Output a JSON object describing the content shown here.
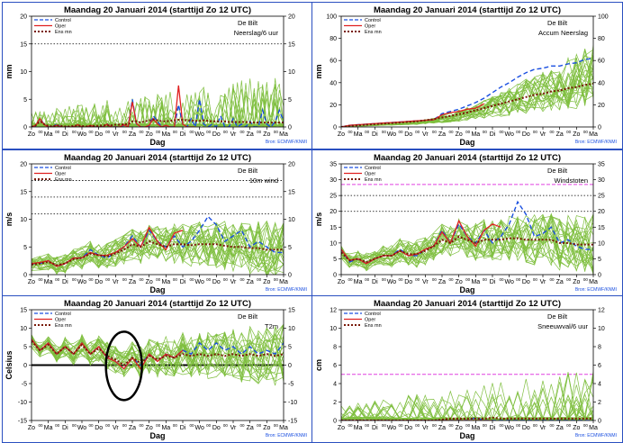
{
  "common": {
    "title": "Maandag  20 Januari  2014  (starttijd  Zo 12 UTC)",
    "xlabel": "Dag",
    "days": [
      "Zo",
      "Ma",
      "Di",
      "Wo",
      "Do",
      "Vr",
      "Za",
      "Zo",
      "Ma",
      "Di",
      "Wo",
      "Do",
      "Vr",
      "Za",
      "Zo",
      "Ma"
    ],
    "tick_label": "00",
    "station": "De Bilt",
    "source": "Bron: ECMWF/KNMI",
    "legend": [
      "Control",
      "Oper",
      "Ens mn"
    ],
    "colors": {
      "ensemble": "#7fbf3f",
      "control": "#1a4fe0",
      "oper": "#e02020",
      "ensmean": "#7a1a08",
      "threshold": "#e040e0",
      "border": "#2a4fc0"
    }
  },
  "chart_data": [
    {
      "type": "line",
      "title": "Maandag  20 Januari  2014  (starttijd  Zo 12 UTC)",
      "subtitle": "Neerslag/6 uur",
      "ylabel": "mm",
      "ylim": [
        0,
        20
      ],
      "yticks": [
        0,
        5,
        10,
        15,
        20
      ],
      "dotted_lines": [
        15
      ],
      "threshold_lines": [],
      "zero_line": false,
      "annotation_ellipse": false,
      "xlim": [
        0,
        15
      ],
      "x": [
        0,
        0.25,
        0.5,
        0.75,
        1,
        1.25,
        1.5,
        1.75,
        2,
        2.25,
        2.5,
        2.75,
        3,
        3.25,
        3.5,
        3.75,
        4,
        4.25,
        4.5,
        4.75,
        5,
        5.25,
        5.5,
        5.75,
        6,
        6.25,
        6.5,
        6.75,
        7,
        7.25,
        7.5,
        7.75,
        8,
        8.25,
        8.5,
        8.75,
        9,
        9.25,
        9.5,
        9.75,
        10,
        10.25,
        10.5,
        10.75,
        11,
        11.25,
        11.5,
        11.75,
        12,
        12.25,
        12.5,
        12.75,
        13,
        13.25,
        13.5,
        13.75,
        14,
        14.25,
        14.5,
        14.75,
        15
      ],
      "series": [
        {
          "name": "Control",
          "values": [
            0,
            0.2,
            1.5,
            0.5,
            0,
            0,
            0.5,
            0,
            0,
            0,
            0,
            0.3,
            0,
            0,
            0.2,
            0,
            0,
            0,
            0.5,
            0,
            0,
            0,
            0.3,
            0,
            5,
            0.5,
            0,
            0,
            0.2,
            2,
            1,
            0,
            0.3,
            0,
            0,
            4,
            0.5,
            0,
            1.5,
            0,
            5,
            0.5,
            0,
            0.5,
            0,
            2,
            0,
            0,
            1.5,
            0,
            0.5,
            0,
            1,
            0,
            0,
            3,
            0.5,
            0,
            1,
            3,
            1
          ]
        },
        {
          "name": "Oper",
          "values": [
            0,
            0.3,
            1.5,
            0.4,
            0,
            0,
            0.3,
            0,
            0,
            0,
            0,
            0.4,
            0,
            0,
            0.3,
            0,
            0,
            0,
            0.5,
            0,
            0,
            0,
            0.4,
            0,
            4.5,
            0.6,
            0,
            0,
            0.3,
            1.5,
            0.5,
            0,
            0.3,
            0,
            0,
            7.5,
            0.5,
            0,
            0,
            0,
            null,
            null,
            null,
            null,
            null,
            null,
            null,
            null,
            null,
            null,
            null,
            null,
            null,
            null,
            null,
            null,
            null,
            null,
            null,
            null,
            null
          ]
        },
        {
          "name": "Ens mn",
          "values": [
            0,
            0.3,
            1,
            0.5,
            0.2,
            0.1,
            0.3,
            0.2,
            0.1,
            0.1,
            0.2,
            0.3,
            0.2,
            0.1,
            0.2,
            0.2,
            0.2,
            0.3,
            0.3,
            0.3,
            0.4,
            0.4,
            0.5,
            0.5,
            1,
            1,
            0.8,
            1,
            1.2,
            1.3,
            1.2,
            1,
            1,
            1.1,
            1.2,
            1.3,
            1.3,
            1.2,
            1.2,
            1.1,
            1.1,
            1.2,
            1.1,
            1,
            1,
            1,
            1,
            0.9,
            0.9,
            0.9,
            0.9,
            0.9,
            0.8,
            0.8,
            0.8,
            0.8,
            0.8,
            0.8,
            0.8,
            0.8,
            0.8
          ]
        }
      ]
    },
    {
      "type": "line",
      "title": "Maandag  20 Januari  2014  (starttijd  Zo 12 UTC)",
      "subtitle": "Accum Neerslag",
      "ylabel": "mm",
      "ylim": [
        0,
        100
      ],
      "yticks": [
        0,
        20,
        40,
        60,
        80,
        100
      ],
      "dotted_lines": [],
      "threshold_lines": [],
      "zero_line": false,
      "annotation_ellipse": false,
      "xlim": [
        0,
        15
      ],
      "x": [
        0,
        0.5,
        1,
        1.5,
        2,
        2.5,
        3,
        3.5,
        4,
        4.5,
        5,
        5.5,
        6,
        6.5,
        7,
        7.5,
        8,
        8.5,
        9,
        9.5,
        10,
        10.5,
        11,
        11.5,
        12,
        12.5,
        13,
        13.5,
        14,
        14.5,
        15
      ],
      "series": [
        {
          "name": "Control",
          "values": [
            0,
            1.5,
            2,
            2.5,
            3,
            3.5,
            4,
            4.5,
            5,
            5.5,
            6,
            6.5,
            12,
            14,
            16,
            19,
            22,
            26,
            31,
            36,
            40,
            45,
            49,
            52,
            53,
            55,
            55,
            57,
            58,
            61,
            62
          ]
        },
        {
          "name": "Oper",
          "values": [
            0,
            1.5,
            2,
            2.5,
            3,
            3.5,
            4,
            4.5,
            5,
            5.5,
            6,
            6.5,
            11,
            13,
            14,
            16,
            17,
            21,
            null,
            null,
            null,
            null,
            null,
            null,
            null,
            null,
            null,
            null,
            null,
            null,
            null
          ]
        },
        {
          "name": "Ens mn",
          "values": [
            0,
            1,
            1.5,
            2,
            2.5,
            3,
            3.5,
            4,
            4.5,
            5,
            6,
            7,
            8.5,
            10,
            11.5,
            13,
            15,
            17,
            19,
            21,
            23,
            25,
            27,
            29,
            30,
            32,
            33,
            35,
            36,
            38,
            39
          ]
        }
      ]
    },
    {
      "type": "line",
      "title": "Maandag  20 Januari  2014  (starttijd  Zo 12 UTC)",
      "subtitle": "10m wind",
      "ylabel": "m/s",
      "ylim": [
        0,
        20
      ],
      "yticks": [
        0,
        5,
        10,
        15,
        20
      ],
      "dotted_lines": [
        11,
        14,
        17
      ],
      "threshold_lines": [],
      "zero_line": false,
      "annotation_ellipse": false,
      "xlim": [
        0,
        15
      ],
      "x": [
        0,
        0.5,
        1,
        1.5,
        2,
        2.5,
        3,
        3.5,
        4,
        4.5,
        5,
        5.5,
        6,
        6.5,
        7,
        7.5,
        8,
        8.5,
        9,
        9.5,
        10,
        10.5,
        11,
        11.5,
        12,
        12.5,
        13,
        13.5,
        14,
        14.5,
        15
      ],
      "series": [
        {
          "name": "Control",
          "values": [
            2,
            2,
            2.5,
            1.5,
            2,
            3,
            3,
            4.5,
            3.5,
            3,
            4,
            5,
            7,
            5,
            8,
            6,
            5,
            7,
            5,
            6,
            8,
            10.5,
            9,
            6,
            7,
            8,
            5,
            6,
            5,
            4,
            4
          ]
        },
        {
          "name": "Oper",
          "values": [
            2,
            2.2,
            2.5,
            1.5,
            2,
            3,
            3,
            4,
            3.5,
            3.5,
            4,
            5,
            6.5,
            5,
            8.5,
            6,
            4.5,
            7.5,
            8,
            null,
            null,
            null,
            null,
            null,
            null,
            null,
            null,
            null,
            null,
            null,
            null
          ]
        },
        {
          "name": "Ens mn",
          "values": [
            1.8,
            2,
            2.3,
            1.7,
            2,
            2.8,
            3,
            3.8,
            3.5,
            3.3,
            3.8,
            4.5,
            5.5,
            5,
            6,
            5.5,
            5,
            5.5,
            5.5,
            5.3,
            5.5,
            5.5,
            5.5,
            5.2,
            5,
            5,
            4.8,
            4.8,
            4.5,
            4.5,
            4.5
          ]
        }
      ]
    },
    {
      "type": "line",
      "title": "Maandag  20 Januari  2014  (starttijd  Zo 12 UTC)",
      "subtitle": "Windstoten",
      "ylabel": "m/s",
      "ylim": [
        0,
        35
      ],
      "yticks": [
        0,
        5,
        10,
        15,
        20,
        25,
        30,
        35
      ],
      "dotted_lines": [
        20,
        25
      ],
      "threshold_lines": [
        28.5
      ],
      "zero_line": false,
      "annotation_ellipse": false,
      "xlim": [
        0,
        15
      ],
      "x": [
        0,
        0.5,
        1,
        1.5,
        2,
        2.5,
        3,
        3.5,
        4,
        4.5,
        5,
        5.5,
        6,
        6.5,
        7,
        7.5,
        8,
        8.5,
        9,
        9.5,
        10,
        10.5,
        11,
        11.5,
        12,
        12.5,
        13,
        13.5,
        14,
        14.5,
        15
      ],
      "series": [
        {
          "name": "Control",
          "values": [
            8,
            4,
            5,
            3.5,
            5,
            6,
            6,
            8,
            6,
            6,
            8,
            9,
            14,
            10,
            16,
            12,
            10,
            14,
            10,
            12,
            16,
            23,
            19,
            12,
            13,
            15,
            10,
            11,
            9,
            8,
            8
          ]
        },
        {
          "name": "Oper",
          "values": [
            8,
            4.5,
            5,
            3.5,
            5,
            6,
            6,
            7.5,
            6,
            6.5,
            8,
            9,
            13.5,
            10,
            17,
            12,
            9,
            14,
            16,
            15,
            null,
            null,
            null,
            null,
            null,
            null,
            null,
            null,
            null,
            null,
            null
          ]
        },
        {
          "name": "Ens mn",
          "values": [
            7,
            4.5,
            5,
            4,
            5,
            6,
            6,
            7.5,
            6.5,
            6.5,
            7.5,
            9,
            11,
            10,
            12,
            11,
            10,
            11,
            11,
            11,
            11.5,
            11.5,
            11,
            11,
            11,
            11,
            10,
            10,
            9.5,
            9.5,
            9.5
          ]
        }
      ]
    },
    {
      "type": "line",
      "title": "Maandag  20 Januari  2014  (starttijd  Zo 12 UTC)",
      "subtitle": "T2m",
      "ylabel": "Celsius",
      "ylim": [
        -15,
        15
      ],
      "yticks": [
        -15,
        -10,
        -5,
        0,
        5,
        10,
        15
      ],
      "dotted_lines": [],
      "threshold_lines": [],
      "zero_line": true,
      "annotation_ellipse": true,
      "xlim": [
        0,
        15
      ],
      "x": [
        0,
        0.5,
        1,
        1.5,
        2,
        2.5,
        3,
        3.5,
        4,
        4.5,
        5,
        5.5,
        6,
        6.5,
        7,
        7.5,
        8,
        8.5,
        9,
        9.5,
        10,
        10.5,
        11,
        11.5,
        12,
        12.5,
        13,
        13.5,
        14,
        14.5,
        15
      ],
      "series": [
        {
          "name": "Control",
          "values": [
            7,
            4,
            6,
            3,
            5,
            3,
            6,
            3,
            5,
            2,
            1,
            -1,
            2,
            0,
            3,
            1,
            3,
            2,
            4,
            3,
            6,
            4,
            6,
            4,
            5,
            3,
            5,
            3,
            4,
            3,
            6
          ]
        },
        {
          "name": "Oper",
          "values": [
            7,
            4,
            6,
            3,
            5,
            3,
            6,
            3,
            5,
            2,
            1,
            -1,
            2,
            -1,
            3,
            1,
            3,
            2,
            4,
            null,
            null,
            null,
            null,
            null,
            null,
            null,
            null,
            null,
            null,
            null,
            null
          ]
        },
        {
          "name": "Ens mn",
          "values": [
            6.5,
            4,
            5.5,
            3,
            5,
            3,
            5.5,
            3,
            4.5,
            2.5,
            1.5,
            0,
            2,
            0.5,
            2.5,
            1.5,
            2.5,
            2,
            3,
            2.5,
            3,
            2.5,
            3,
            2.5,
            3,
            2.5,
            3,
            2.5,
            3,
            2.5,
            3
          ]
        }
      ]
    },
    {
      "type": "line",
      "title": "Maandag  20 Januari  2014  (starttijd  Zo 12 UTC)",
      "subtitle": "Sneeuwval/6 uur",
      "ylabel": "cm",
      "ylim": [
        0,
        12
      ],
      "yticks": [
        0,
        2,
        4,
        6,
        8,
        10,
        12
      ],
      "dotted_lines": [],
      "threshold_lines": [
        5
      ],
      "zero_line": false,
      "annotation_ellipse": false,
      "xlim": [
        0,
        15
      ],
      "x": [
        0,
        0.5,
        1,
        1.5,
        2,
        2.5,
        3,
        3.5,
        4,
        4.5,
        5,
        5.5,
        6,
        6.5,
        7,
        7.5,
        8,
        8.5,
        9,
        9.5,
        10,
        10.5,
        11,
        11.5,
        12,
        12.5,
        13,
        13.5,
        14,
        14.5,
        15
      ],
      "series": [
        {
          "name": "Control",
          "values": [
            0,
            0,
            0,
            0,
            0,
            0,
            0,
            0,
            0,
            0,
            0,
            0,
            0,
            0,
            0,
            0,
            0.3,
            0,
            0,
            0,
            0,
            0,
            0,
            0,
            0,
            0,
            0,
            0,
            0,
            0,
            0
          ]
        },
        {
          "name": "Oper",
          "values": [
            0,
            0,
            0,
            0,
            0,
            0,
            0,
            0,
            0,
            0,
            0,
            0,
            0,
            0,
            0,
            0,
            0,
            0,
            0,
            null,
            null,
            null,
            null,
            null,
            null,
            null,
            null,
            null,
            null,
            null,
            null
          ]
        },
        {
          "name": "Ens mn",
          "values": [
            0,
            0,
            0,
            0,
            0,
            0,
            0,
            0,
            0,
            0,
            0,
            0,
            0.1,
            0.2,
            0.2,
            0.2,
            0.2,
            0.2,
            0.3,
            0.2,
            0.2,
            0.2,
            0.2,
            0.2,
            0.2,
            0.2,
            0.2,
            0.2,
            0.2,
            0.2,
            0.2
          ]
        }
      ]
    }
  ]
}
